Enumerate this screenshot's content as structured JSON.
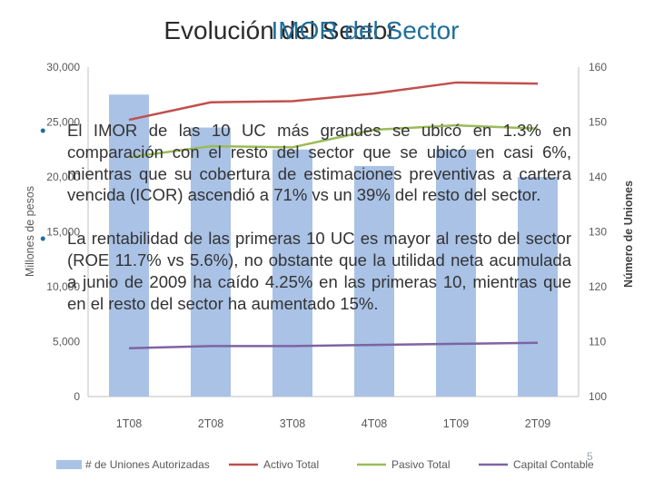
{
  "slide": {
    "title_part1": "Evolución del Sector",
    "title_part2": "IMOR del Sector",
    "bullets": [
      "El IMOR de las 10 UC más grandes se ubicó en 1.3% en comparación con el resto del sector que se ubicó en casi 6%, mientras que su cobertura de estimaciones preventivas a cartera vencida (ICOR) ascendió a 71% vs un 39% del resto del sector.",
      "La rentabilidad de las primeras 10 UC es mayor al resto del sector (ROE 11.7% vs 5.6%), no obstante que la utilidad neta acumulada a junio de 2009 ha caído 4.25% en las primeras 10, mientras que en el resto del sector ha aumentado 15%."
    ],
    "bullet_marker": "•",
    "slide_number": "5"
  },
  "colors": {
    "bars": "#a9c2e6",
    "activo": "#c0504d",
    "pasivo": "#9bbb59",
    "capital": "#7f63a3",
    "accent": "#1f6f9b",
    "axis_text": "#595959"
  },
  "chart_data": {
    "type": "bar",
    "categories": [
      "1T08",
      "2T08",
      "3T08",
      "4T08",
      "1T09",
      "2T09"
    ],
    "ylabel": "Millones de pesos",
    "y2label": "Número de Uniones",
    "ylim": [
      0,
      30000
    ],
    "y2lim": [
      100,
      160
    ],
    "yticks": [
      "30,000",
      "25,000",
      "20,000",
      "15,000",
      "10,000",
      "5,000",
      "0"
    ],
    "y2ticks": [
      "160",
      "150",
      "140",
      "130",
      "120",
      "110",
      "100"
    ],
    "series": [
      {
        "name": "# de Uniones Autorizadas",
        "type": "bar",
        "axis": "y2",
        "values": [
          155,
          149,
          145,
          142,
          145,
          140
        ]
      },
      {
        "name": "Activo Total",
        "type": "line",
        "axis": "y",
        "values": [
          25200,
          26800,
          26900,
          27600,
          28600,
          28500
        ]
      },
      {
        "name": "Pasivo Total",
        "type": "line",
        "axis": "y",
        "values": [
          21800,
          22800,
          22700,
          24300,
          24700,
          24400
        ]
      },
      {
        "name": "Capital Contable",
        "type": "line",
        "axis": "y",
        "values": [
          4400,
          4600,
          4600,
          4700,
          4800,
          4900
        ]
      }
    ],
    "legend": "bottom"
  }
}
